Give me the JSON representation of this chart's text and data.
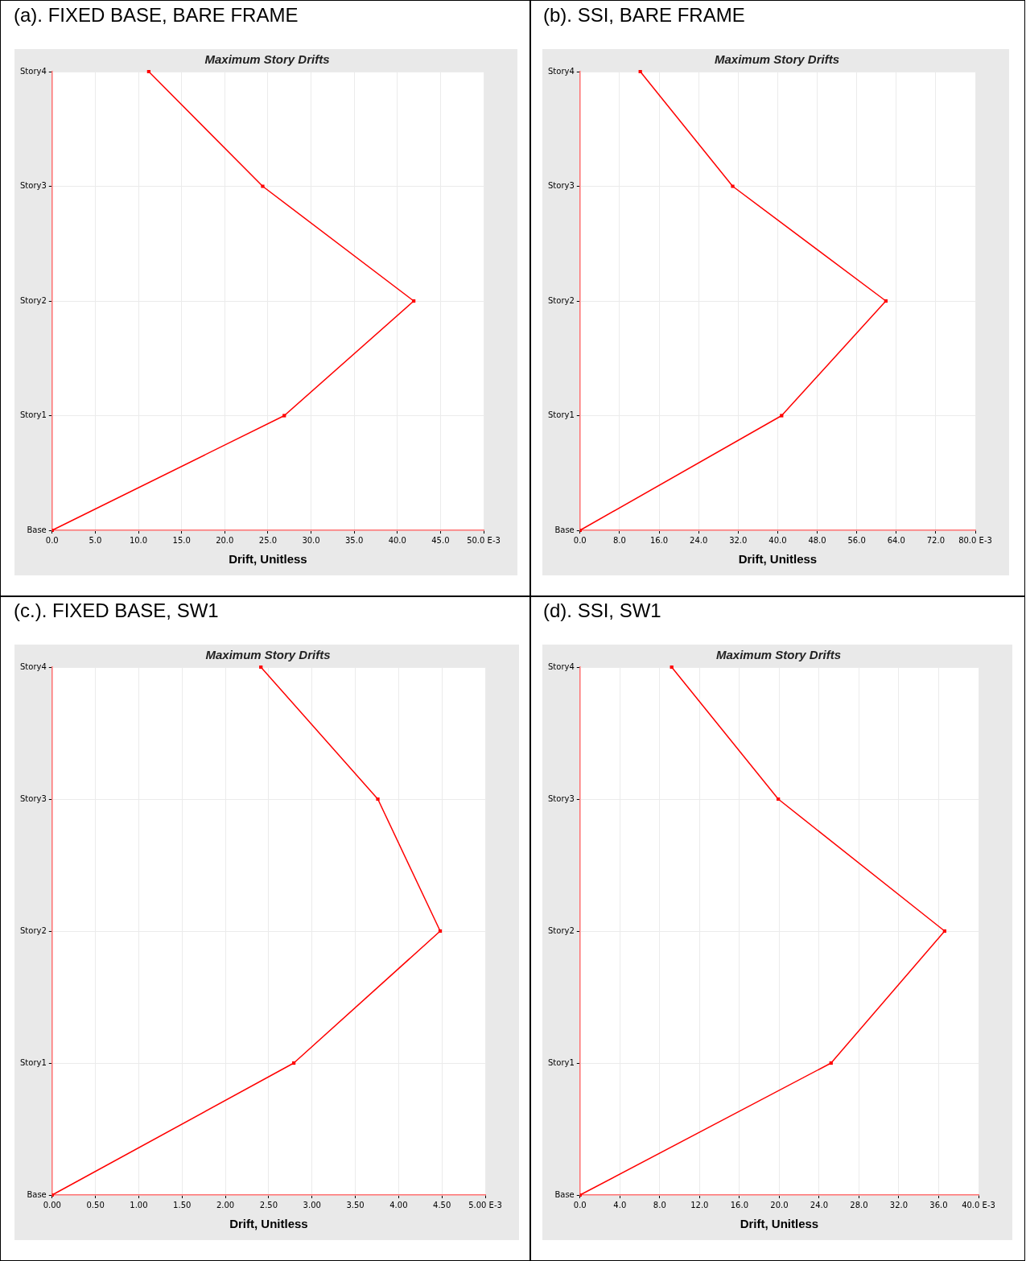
{
  "chart_data": [
    {
      "type": "line",
      "title": "(a). FIXED BASE, BARE FRAME",
      "subtitle": "Maximum Story Drifts",
      "xlabel": "Drift, Unitless",
      "orientation": "horizontal",
      "categories": [
        "Story4",
        "Story3",
        "Story2",
        "Story1",
        "Base"
      ],
      "values": [
        11.2,
        24.4,
        41.9,
        26.9,
        0
      ],
      "color": "#ff0000",
      "marker": "square",
      "grid": true,
      "xlim": [
        0,
        50
      ],
      "xticks": [
        {
          "value": 0,
          "label": "0.0"
        },
        {
          "value": 5,
          "label": "5.0"
        },
        {
          "value": 10,
          "label": "10.0"
        },
        {
          "value": 15,
          "label": "15.0"
        },
        {
          "value": 20,
          "label": "20.0"
        },
        {
          "value": 25,
          "label": "25.0"
        },
        {
          "value": 30,
          "label": "30.0"
        },
        {
          "value": 35,
          "label": "35.0"
        },
        {
          "value": 40,
          "label": "40.0"
        },
        {
          "value": 45,
          "label": "45.0"
        },
        {
          "value": 50,
          "label": "50.0 E-3"
        }
      ]
    },
    {
      "type": "line",
      "title": "(b). SSI, BARE FRAME",
      "subtitle": "Maximum Story Drifts",
      "xlabel": "Drift, Unitless",
      "orientation": "horizontal",
      "categories": [
        "Story4",
        "Story3",
        "Story2",
        "Story1",
        "Base"
      ],
      "values": [
        12.2,
        30.9,
        61.9,
        40.8,
        0
      ],
      "color": "#ff0000",
      "marker": "square",
      "grid": true,
      "xlim": [
        0,
        80
      ],
      "xticks": [
        {
          "value": 0,
          "label": "0.0"
        },
        {
          "value": 8,
          "label": "8.0"
        },
        {
          "value": 16,
          "label": "16.0"
        },
        {
          "value": 24,
          "label": "24.0"
        },
        {
          "value": 32,
          "label": "32.0"
        },
        {
          "value": 40,
          "label": "40.0"
        },
        {
          "value": 48,
          "label": "48.0"
        },
        {
          "value": 56,
          "label": "56.0"
        },
        {
          "value": 64,
          "label": "64.0"
        },
        {
          "value": 72,
          "label": "72.0"
        },
        {
          "value": 80,
          "label": "80.0 E-3"
        }
      ]
    },
    {
      "type": "line",
      "title": "(c.). FIXED BASE, SW1",
      "subtitle": "Maximum Story Drifts",
      "xlabel": "Drift, Unitless",
      "orientation": "horizontal",
      "categories": [
        "Story4",
        "Story3",
        "Story2",
        "Story1",
        "Base"
      ],
      "values": [
        2.41,
        3.76,
        4.48,
        2.79,
        0
      ],
      "color": "#ff0000",
      "marker": "square",
      "grid": true,
      "xlim": [
        0,
        5
      ],
      "xticks": [
        {
          "value": 0,
          "label": "0.00"
        },
        {
          "value": 0.5,
          "label": "0.50"
        },
        {
          "value": 1,
          "label": "1.00"
        },
        {
          "value": 1.5,
          "label": "1.50"
        },
        {
          "value": 2,
          "label": "2.00"
        },
        {
          "value": 2.5,
          "label": "2.50"
        },
        {
          "value": 3,
          "label": "3.00"
        },
        {
          "value": 3.5,
          "label": "3.50"
        },
        {
          "value": 4,
          "label": "4.00"
        },
        {
          "value": 4.5,
          "label": "4.50"
        },
        {
          "value": 5,
          "label": "5.00 E-3"
        }
      ]
    },
    {
      "type": "line",
      "title": "(d). SSI, SW1",
      "subtitle": "Maximum Story Drifts",
      "xlabel": "Drift, Unitless",
      "orientation": "horizontal",
      "categories": [
        "Story4",
        "Story3",
        "Story2",
        "Story1",
        "Base"
      ],
      "values": [
        9.2,
        19.9,
        36.6,
        25.2,
        0
      ],
      "color": "#ff0000",
      "marker": "square",
      "grid": true,
      "xlim": [
        0,
        40
      ],
      "xticks": [
        {
          "value": 0,
          "label": "0.0"
        },
        {
          "value": 4,
          "label": "4.0"
        },
        {
          "value": 8,
          "label": "8.0"
        },
        {
          "value": 12,
          "label": "12.0"
        },
        {
          "value": 16,
          "label": "16.0"
        },
        {
          "value": 20,
          "label": "20.0"
        },
        {
          "value": 24,
          "label": "24.0"
        },
        {
          "value": 28,
          "label": "28.0"
        },
        {
          "value": 32,
          "label": "32.0"
        },
        {
          "value": 36,
          "label": "36.0"
        },
        {
          "value": 40,
          "label": "40.0 E-3"
        }
      ]
    }
  ]
}
